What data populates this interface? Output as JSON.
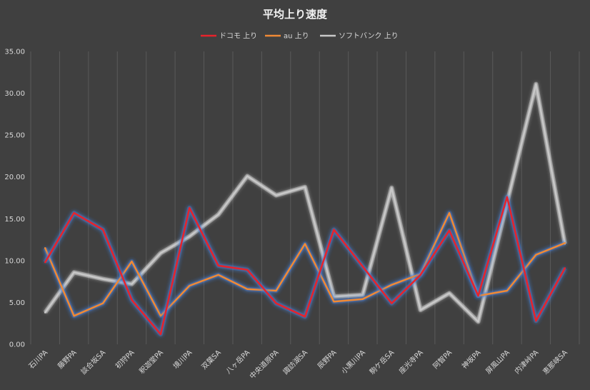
{
  "chart_data": {
    "type": "line",
    "title": "平均上り速度",
    "xlabel": "",
    "ylabel": "",
    "ylim": [
      0,
      35
    ],
    "ytick_step": 5,
    "ytick_labels": [
      "0.00",
      "5.00",
      "10.00",
      "15.00",
      "20.00",
      "25.00",
      "30.00",
      "35.00"
    ],
    "grid": "vertical",
    "legend_position": "top-center",
    "categories": [
      "石川PA",
      "藤野PA",
      "談合坂SA",
      "初狩PA",
      "釈迦堂PA",
      "境川PA",
      "双葉SA",
      "八ヶ岳PA",
      "中央道原PA",
      "諏訪湖SA",
      "辰野PA",
      "小黒川PA",
      "駒ケ岳SA",
      "座光寺PA",
      "阿智PA",
      "神坂PA",
      "屏風山PA",
      "内津峠PA",
      "恵那峡SA"
    ],
    "series": [
      {
        "name": "ドコモ 上り",
        "color": "#e8232b",
        "glow": "#4a7fd4",
        "values": [
          9.8,
          15.7,
          13.7,
          5.3,
          1.2,
          16.3,
          9.4,
          8.9,
          4.9,
          3.3,
          13.7,
          9.3,
          4.9,
          8.3,
          13.6,
          5.8,
          17.6,
          2.8,
          9.1
        ]
      },
      {
        "name": "au 上り",
        "color": "#f08a35",
        "glow": "#4a7fd4",
        "values": [
          11.5,
          3.4,
          4.9,
          9.9,
          3.4,
          7.0,
          8.3,
          6.6,
          6.4,
          12.0,
          5.1,
          5.4,
          7.1,
          8.4,
          15.7,
          5.8,
          6.4,
          10.7,
          12.1
        ]
      },
      {
        "name": "ソフトバンク 上り",
        "color": "#c8c8c8",
        "glow": "#ffffff",
        "values": [
          3.8,
          8.6,
          7.8,
          7.2,
          10.9,
          12.9,
          15.5,
          20.1,
          17.8,
          18.8,
          5.7,
          5.9,
          18.7,
          4.1,
          6.1,
          2.7,
          16.9,
          31.1,
          12.0
        ]
      }
    ]
  }
}
